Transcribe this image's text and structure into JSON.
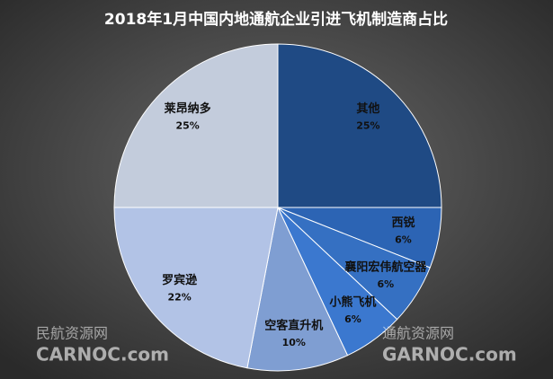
{
  "chart_data": {
    "type": "pie",
    "title": "2018年1月中国内地通航企业引进飞机制造商占比",
    "categories": [
      "其他",
      "西锐",
      "襄阳宏伟航空器",
      "小熊飞机",
      "空客直升机",
      "罗宾逊",
      "莱昂纳多"
    ],
    "values": [
      25,
      6,
      6,
      6,
      10,
      22,
      25
    ],
    "value_labels": [
      "25%",
      "6%",
      "6%",
      "6%",
      "10%",
      "22%",
      "25%"
    ],
    "colors": [
      "#1f4a84",
      "#2c64b4",
      "#3570c2",
      "#3b78cf",
      "#7f9ed2",
      "#b2c3e6",
      "#c3ccdc"
    ]
  },
  "watermarks": [
    {
      "line1": "民航资源网",
      "line2": "CARNOC.com"
    },
    {
      "line1": "通航资源网",
      "line2": "GARNOC.com"
    }
  ]
}
